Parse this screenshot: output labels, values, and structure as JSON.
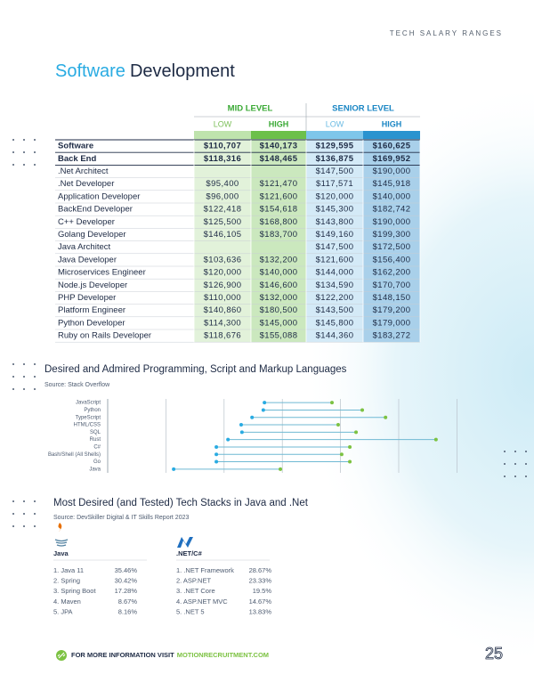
{
  "header": {
    "section_label": "TECH SALARY RANGES",
    "title_highlight": "Software",
    "title_main": "Development"
  },
  "table": {
    "group_headers": [
      "MID LEVEL",
      "SENIOR LEVEL"
    ],
    "column_headers": [
      "LOW",
      "HIGH",
      "LOW",
      "HIGH"
    ],
    "rows": [
      [
        "Software",
        "$110,707",
        "$140,173",
        "$129,595",
        "$160,625"
      ],
      [
        "Back End",
        "$118,316",
        "$148,465",
        "$136,875",
        "$169,952"
      ],
      [
        ".Net Architect",
        null,
        null,
        "$147,500",
        "$190,000"
      ],
      [
        ".Net Developer",
        "$95,400",
        "$121,470",
        "$117,571",
        "$145,918"
      ],
      [
        "Application Developer",
        "$96,000",
        "$121,600",
        "$120,000",
        "$140,000"
      ],
      [
        "BackEnd Developer",
        "$122,418",
        "$154,618",
        "$145,300",
        "$182,742"
      ],
      [
        "C++ Developer",
        "$125,500",
        "$168,800",
        "$143,800",
        "$190,000"
      ],
      [
        "Golang Developer",
        "$146,105",
        "$183,700",
        "$149,160",
        "$199,300"
      ],
      [
        "Java Architect",
        null,
        null,
        "$147,500",
        "$172,500"
      ],
      [
        "Java Developer",
        "$103,636",
        "$132,200",
        "$121,600",
        "$156,400"
      ],
      [
        "Microservices Engineer",
        "$120,000",
        "$140,000",
        "$144,000",
        "$162,200"
      ],
      [
        "Node.js Developer",
        "$126,900",
        "$146,600",
        "$134,590",
        "$170,700"
      ],
      [
        "PHP Developer",
        "$110,000",
        "$132,000",
        "$122,200",
        "$148,150"
      ],
      [
        "Platform Engineer",
        "$140,860",
        "$180,500",
        "$143,500",
        "$179,200"
      ],
      [
        "Python Developer",
        "$114,300",
        "$145,000",
        "$145,800",
        "$179,000"
      ],
      [
        "Ruby on Rails Developer",
        "$118,676",
        "$155,088",
        "$144,360",
        "$183,272"
      ]
    ]
  },
  "chart_data": {
    "type": "dumbbell",
    "title": "Desired and Admired Programming, Script and Markup Languages",
    "subtitle": "Source: Stack Overflow",
    "categories": [
      "JavaScript",
      "Python",
      "TypeScript",
      "HTML/CSS",
      "SQL",
      "Rust",
      "C#",
      "Bash/Shell (All Shells)",
      "Go",
      "Java"
    ],
    "series": [
      {
        "color": "#29abe2",
        "values": [
          40.4,
          40.1,
          37.2,
          34.4,
          34.6,
          31.0,
          28.0,
          28.0,
          28.0,
          17.0
        ]
      },
      {
        "color": "#7cc242",
        "values": [
          57.8,
          65.6,
          71.6,
          59.4,
          64.0,
          84.6,
          62.4,
          60.3,
          62.4,
          44.5
        ]
      }
    ],
    "xlim": [
      0,
      100
    ],
    "xticks": [
      0,
      15,
      30,
      45,
      60,
      75,
      90
    ],
    "grid": true
  },
  "stacks": {
    "title": "Most Desired (and Tested) Tech Stacks in Java and .Net",
    "source": "Source: DevSkiller Digital & IT Skills Report 2023",
    "lists": [
      {
        "name": "Java",
        "items": [
          [
            "1. Java 11",
            "35.46%"
          ],
          [
            "2. Spring",
            "30.42%"
          ],
          [
            "3. Spring Boot",
            "17.28%"
          ],
          [
            "4. Maven",
            "8.67%"
          ],
          [
            "5. JPA",
            "8.16%"
          ]
        ]
      },
      {
        "name": ".NET/C#",
        "items": [
          [
            "1. .NET Framework",
            "28.67%"
          ],
          [
            "2. ASP.NET",
            "23.33%"
          ],
          [
            "3. .NET Core",
            "19.5%"
          ],
          [
            "4. ASP.NET MVC",
            "14.67%"
          ],
          [
            "5. .NET 5",
            "13.83%"
          ]
        ]
      }
    ]
  },
  "footer": {
    "text": "FOR MORE INFORMATION VISIT",
    "link": "MOTIONRECRUITMENT.COM",
    "page_number": "25"
  }
}
